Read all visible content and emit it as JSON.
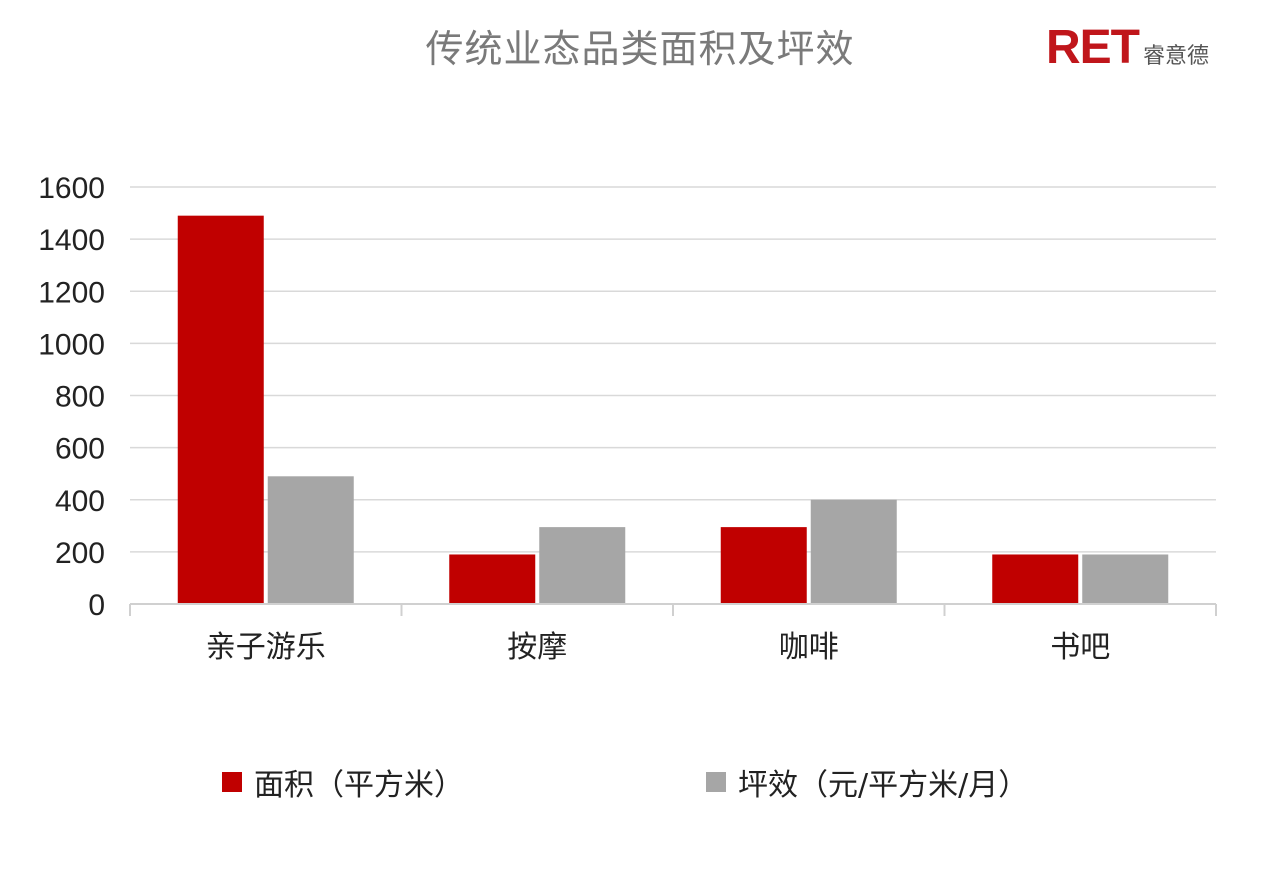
{
  "chart_data": {
    "type": "bar",
    "title": "传统业态品类面积及坪效",
    "categories": [
      "亲子游乐",
      "按摩",
      "咖啡",
      "书吧"
    ],
    "series": [
      {
        "name": "面积（平方米）",
        "values": [
          1490,
          190,
          295,
          190
        ],
        "color": "#c00000"
      },
      {
        "name": "坪效（元/平方米/月）",
        "values": [
          490,
          295,
          400,
          190
        ],
        "color": "#a6a6a6"
      }
    ],
    "yticks": [
      "0",
      "200",
      "400",
      "600",
      "800",
      "1000",
      "1200",
      "1400",
      "1600"
    ],
    "ylim": [
      0,
      1600
    ],
    "grid": true,
    "legend_position": "bottom"
  },
  "logo": {
    "mark": "RET",
    "text": "睿意德"
  }
}
